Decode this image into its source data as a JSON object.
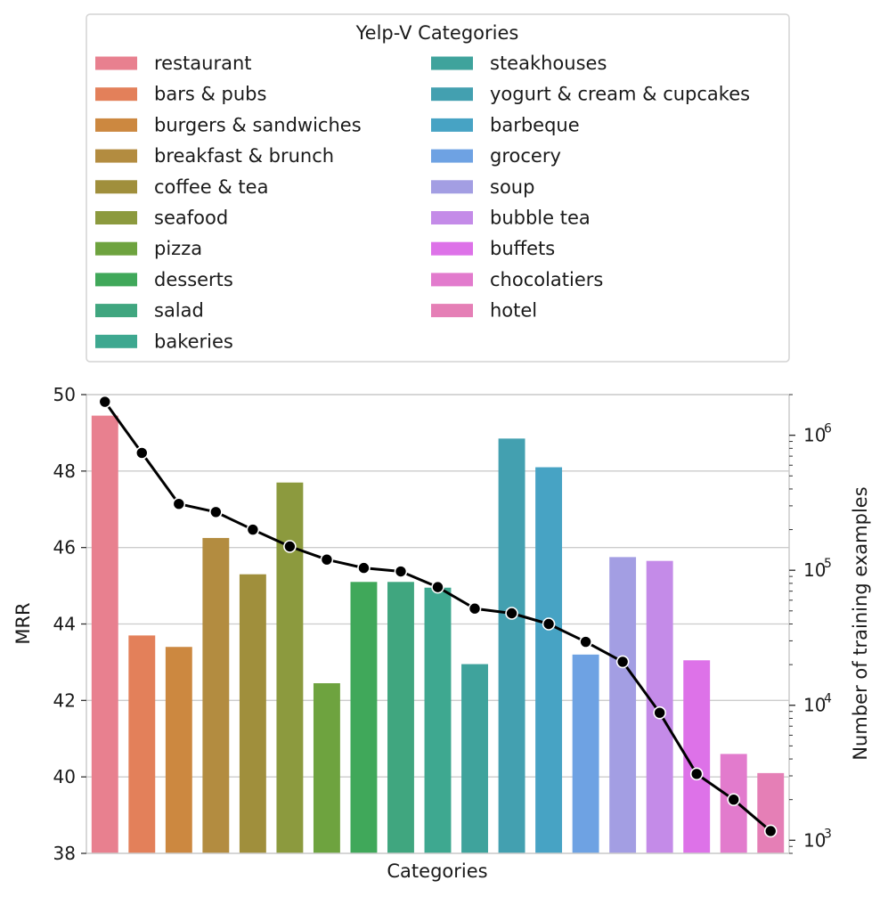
{
  "chart_data": {
    "type": "bar",
    "xlabel": "Categories",
    "ylabel": "MRR",
    "y2label": "Number of training examples",
    "ylim": [
      38,
      50
    ],
    "yticks": [
      "38",
      "40",
      "42",
      "44",
      "46",
      "48",
      "50"
    ],
    "y2scale": "log",
    "y2lim": [
      800,
      2000000
    ],
    "y2ticks": [
      {
        "base": "10",
        "exp": "3",
        "value": 1000
      },
      {
        "base": "10",
        "exp": "4",
        "value": 10000
      },
      {
        "base": "10",
        "exp": "5",
        "value": 100000
      },
      {
        "base": "10",
        "exp": "6",
        "value": 1000000
      }
    ],
    "grid": true,
    "legend": {
      "title": "Yelp-V Categories",
      "placement": "top",
      "columns": 2
    },
    "categories": [
      "restaurant",
      "bars & pubs",
      "burgers & sandwiches",
      "breakfast & brunch",
      "coffee & tea",
      "seafood",
      "pizza",
      "desserts",
      "salad",
      "bakeries",
      "steakhouses",
      "yogurt & cream & cupcakes",
      "barbeque",
      "grocery",
      "soup",
      "bubble tea",
      "buffets",
      "chocolatiers",
      "hotel"
    ],
    "colors": [
      "#e8808f",
      "#e3805a",
      "#cc8840",
      "#b38c40",
      "#a08f3c",
      "#8c9a3e",
      "#6ea33f",
      "#40a85a",
      "#40a67f",
      "#3ea890",
      "#3fa39c",
      "#43a0b0",
      "#47a3c4",
      "#6ea2e3",
      "#a39ee3",
      "#c48be8",
      "#dd72e8",
      "#e27bcd",
      "#e57fb6"
    ],
    "series": [
      {
        "name": "MRR",
        "type": "bar",
        "values": [
          49.45,
          43.7,
          43.4,
          46.25,
          45.3,
          47.7,
          42.45,
          45.1,
          45.1,
          44.95,
          42.95,
          48.85,
          48.1,
          43.2,
          45.75,
          45.65,
          43.05,
          40.6,
          40.1
        ]
      },
      {
        "name": "Number of training examples",
        "type": "line",
        "axis": "right",
        "values": [
          1770000,
          740000,
          310000,
          270000,
          200000,
          150000,
          120000,
          104000,
          98000,
          75000,
          52000,
          48000,
          40000,
          29500,
          21000,
          8800,
          3100,
          2000,
          1170
        ]
      }
    ]
  }
}
